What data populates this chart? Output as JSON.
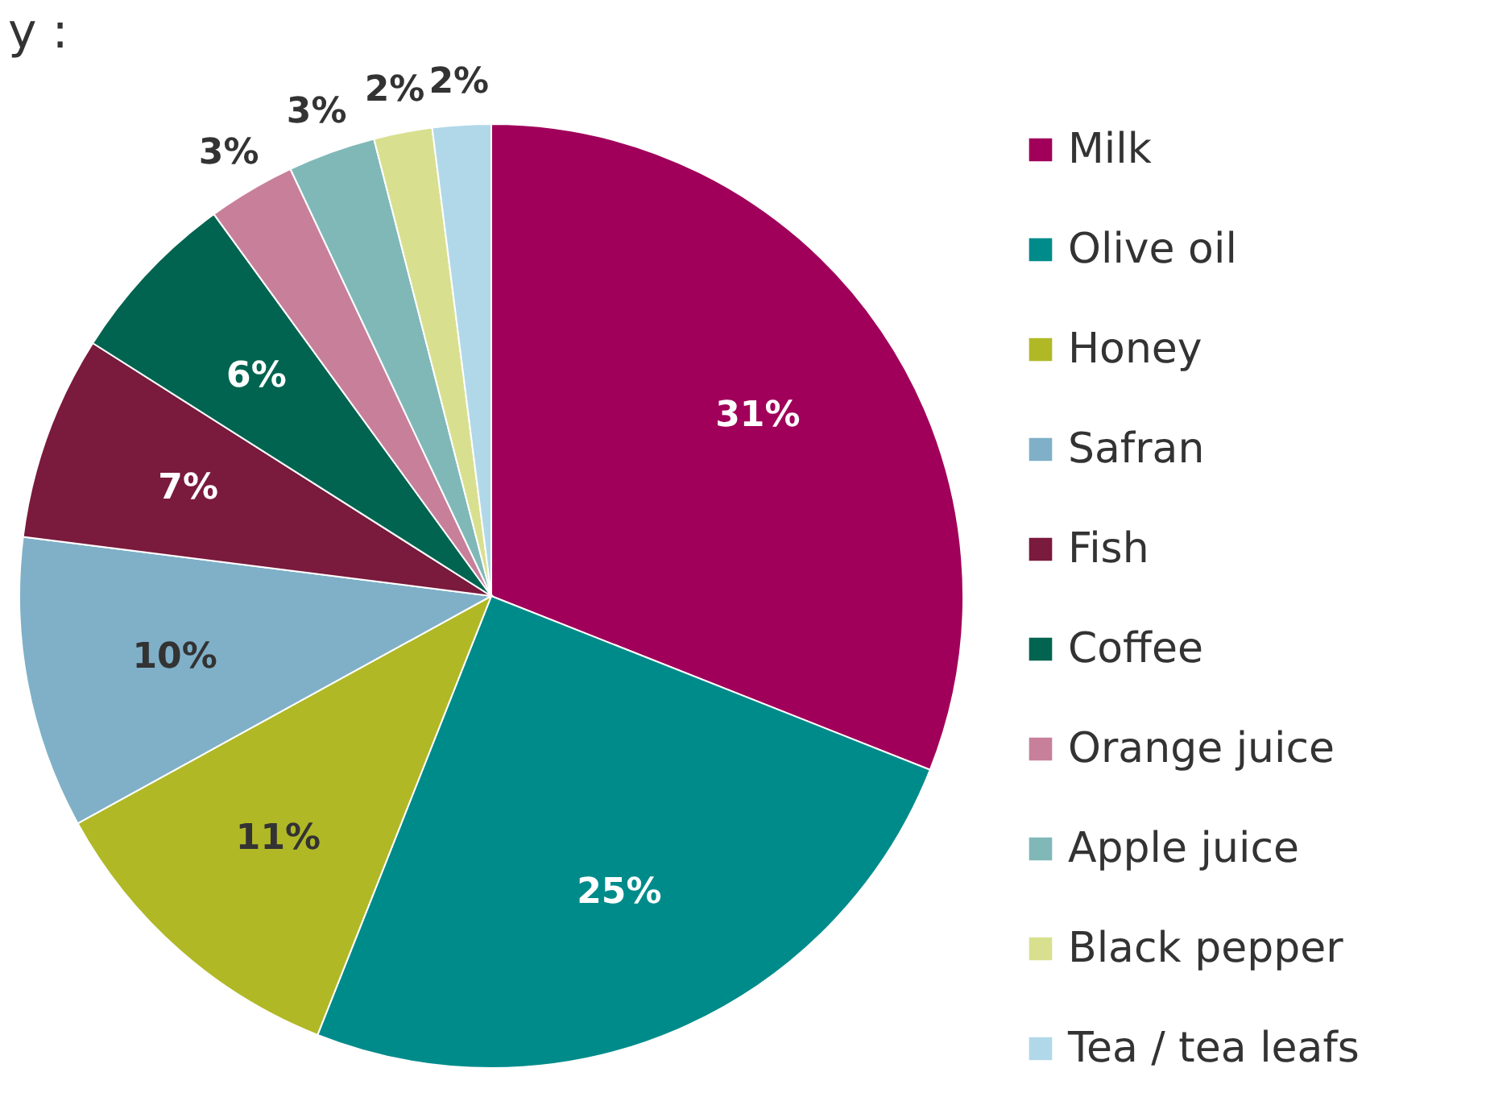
{
  "chart_data": {
    "type": "pie",
    "title": "y :",
    "legend": "right",
    "categories": [
      "Milk",
      "Olive oil",
      "Honey",
      "Safran",
      "Fish",
      "Coffee",
      "Orange juice",
      "Apple juice",
      "Black pepper",
      "Tea / tea leafs"
    ],
    "values": [
      31,
      25,
      11,
      10,
      7,
      6,
      3,
      3,
      2,
      2
    ],
    "value_labels": [
      "31%",
      "25%",
      "11%",
      "10%",
      "7%",
      "6%",
      "3%",
      "3%",
      "2%",
      "2%"
    ],
    "colors": [
      "#a0005a",
      "#008b8b",
      "#b0b826",
      "#7fb0c8",
      "#7a1a3c",
      "#006450",
      "#c8809a",
      "#80b8b8",
      "#d8e090",
      "#b0d8e8"
    ]
  }
}
